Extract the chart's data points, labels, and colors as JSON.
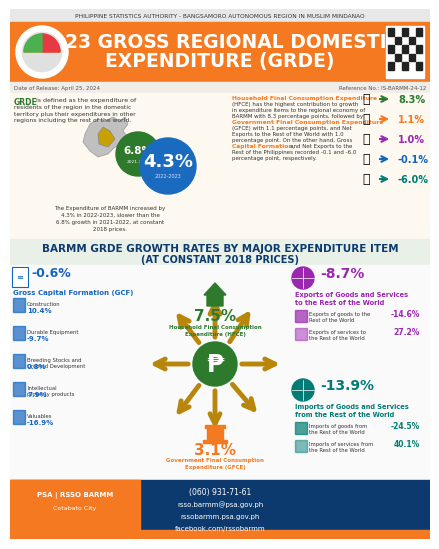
{
  "title_line1": "2023 GROSS REGIONAL DOMESTIC",
  "title_line2": "EXPENDITURE (GRDE)",
  "header_text": "PHILIPPINE STATISTICS AUTHORITY - BANGSAMORO AUTONOMOUS REGION IN MUSLIM MINDANAO",
  "date_text": "Date of Release: April 25, 2024",
  "ref_text": "Reference No.: IS-BARMM-24-12",
  "orange": "#f47920",
  "green_dark": "#2d7a2d",
  "blue_circle": "#1a6bbf",
  "blue_label": "#1565c0",
  "purple": "#9b26af",
  "teal": "#007b75",
  "gold_arrow": "#b8860b",
  "navy": "#0d3a6e",
  "grde_pct_2022_2023": "4.3%",
  "grde_pct_2021_2022": "6.8%",
  "section2_title": "BARMM GRDE GROWTH RATES BY MAJOR EXPENDITURE ITEM",
  "section2_subtitle": "(AT CONSTANT 2018 PRICES)",
  "hfce_pct": "7.5%",
  "gfce_pct": "3.1%",
  "gcf_pct": "-0.6%",
  "exports_world_pct": "-8.7%",
  "imports_world_pct": "-13.9%",
  "exports_goods_world": "-14.6%",
  "exports_services_world": "27.2%",
  "imports_goods_world": "-24.5%",
  "imports_services_world": "40.1%",
  "gcf_items": [
    {
      "name": "Construction",
      "value": "10.4%"
    },
    {
      "name": "Durable Equipment",
      "value": "-9.7%"
    },
    {
      "name": "Breeding Stocks and\nOrchard Development",
      "value": "0.8%"
    },
    {
      "name": "Intellectual\nproperty products",
      "value": "7.9%"
    },
    {
      "name": "Valuables",
      "value": "-16.9%"
    }
  ],
  "hfce_contribution": "8.3%",
  "gfce_contribution": "1.1%",
  "net_exports_roph": "1.0%",
  "gcf_contribution": "-0.1%",
  "net_exports_world": "-6.0%"
}
